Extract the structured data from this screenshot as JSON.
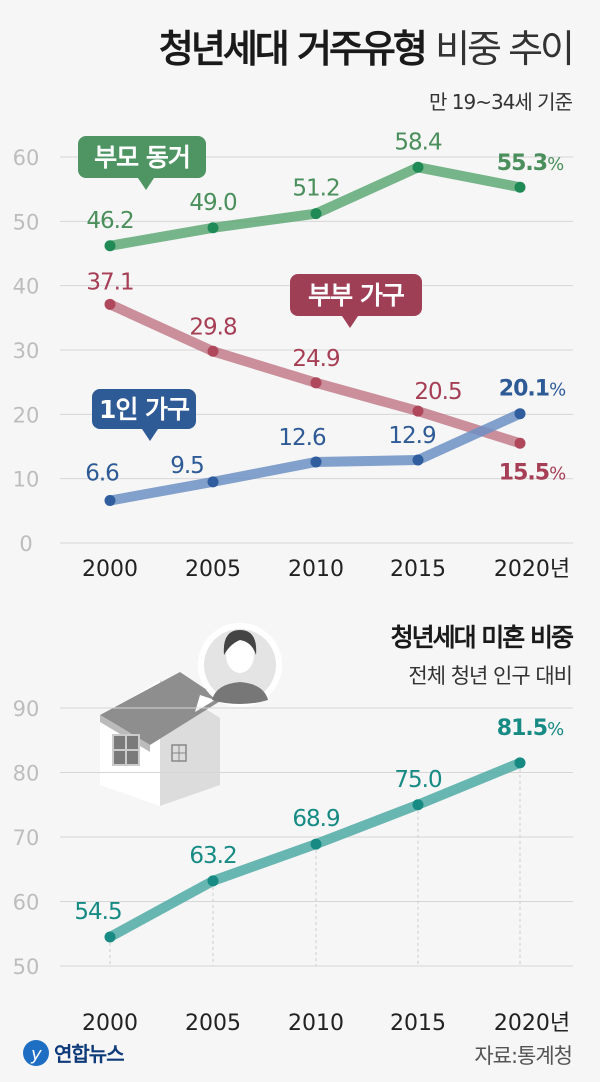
{
  "header": {
    "title_bold": "청년세대 거주유형",
    "title_light": "비중 추이",
    "subtitle": "만 19~34세 기준"
  },
  "chart2_header": {
    "title": "청년세대 미혼 비중",
    "subtitle": "전체 청년 인구 대비"
  },
  "footer": {
    "logo_text": "연합뉴스",
    "source": "자료:통계청"
  },
  "chart_data": [
    {
      "type": "line",
      "title": "청년세대 거주유형 비중 추이",
      "subtitle": "만 19~34세 기준",
      "categories": [
        "2000",
        "2005",
        "2010",
        "2015",
        "2020년"
      ],
      "ylim": [
        0,
        60
      ],
      "yticks": [
        "0",
        "10",
        "20",
        "30",
        "40",
        "50",
        "60"
      ],
      "grid": true,
      "unit": "%",
      "series": [
        {
          "name": "부모 동거",
          "values": [
            46.2,
            49.0,
            51.2,
            58.4,
            55.3
          ],
          "labels": [
            "46.2",
            "49.0",
            "51.2",
            "58.4",
            "55.3"
          ],
          "color": "#5fa875",
          "dot": "#1f8a55",
          "text": "#4a8f5c"
        },
        {
          "name": "부부 가구",
          "values": [
            37.1,
            29.8,
            24.9,
            20.5,
            15.5
          ],
          "labels": [
            "37.1",
            "29.8",
            "24.9",
            "20.5",
            "15.5"
          ],
          "color": "#c27d8b",
          "dot": "#b0485c",
          "text": "#a63f55"
        },
        {
          "name": "1인 가구",
          "values": [
            6.6,
            9.5,
            12.6,
            12.9,
            20.1
          ],
          "labels": [
            "6.6",
            "9.5",
            "12.6",
            "12.9",
            "20.1"
          ],
          "color": "#6d90c4",
          "dot": "#2f5d9e",
          "text": "#2e5a96"
        }
      ]
    },
    {
      "type": "line",
      "title": "청년세대 미혼 비중",
      "subtitle": "전체 청년 인구 대비",
      "categories": [
        "2000",
        "2005",
        "2010",
        "2015",
        "2020년"
      ],
      "ylim": [
        50,
        90
      ],
      "yticks": [
        "50",
        "60",
        "70",
        "80",
        "90"
      ],
      "grid": true,
      "unit": "%",
      "series": [
        {
          "values": [
            54.5,
            63.2,
            68.9,
            75.0,
            81.5
          ],
          "labels": [
            "54.5",
            "63.2",
            "68.9",
            "75.0",
            "81.5"
          ],
          "color": "#4faaa5",
          "dot": "#178a84",
          "text": "#178a84"
        }
      ]
    }
  ]
}
